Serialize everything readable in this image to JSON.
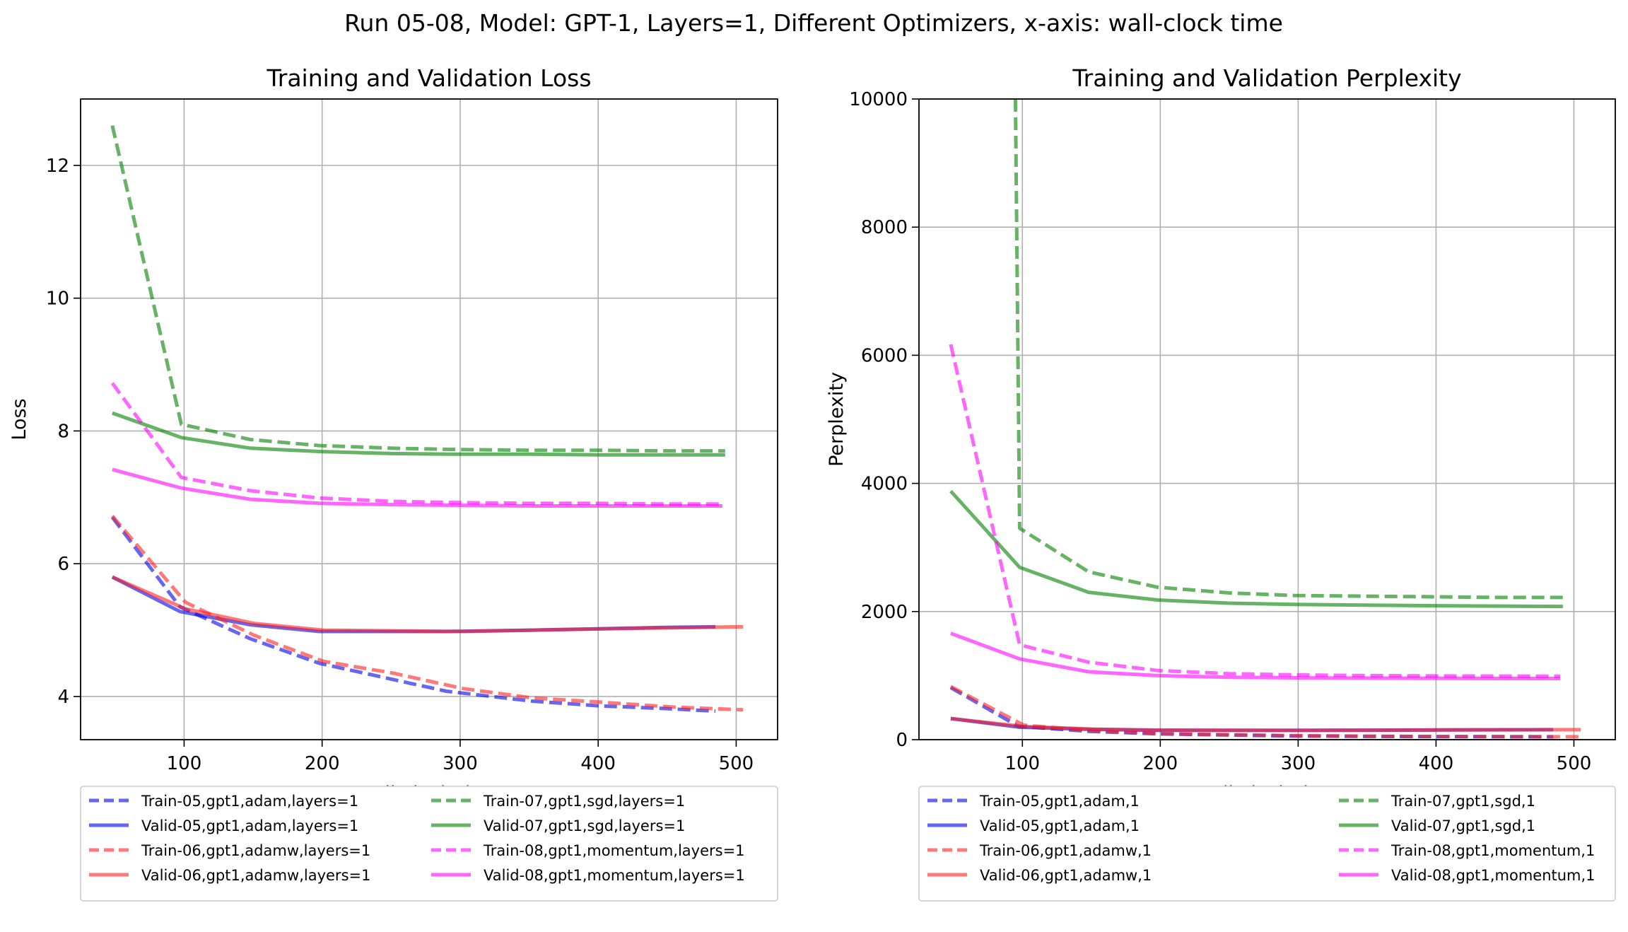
{
  "figure_title": "Run 05-08, Model: GPT-1, Layers=1, Different Optimizers, x-axis: wall-clock time",
  "chart_data": [
    {
      "type": "line",
      "title": "Training and Validation Loss",
      "xlabel": "wall-clock time",
      "ylabel": "Loss",
      "xlim": [
        25,
        530
      ],
      "ylim": [
        3.35,
        13.0
      ],
      "xticks": [
        100,
        200,
        300,
        400,
        500
      ],
      "yticks": [
        4,
        6,
        8,
        10,
        12
      ],
      "grid": true,
      "legend_position": "below",
      "series": [
        {
          "name": "Train-05,gpt1,adam,layers=1",
          "color": "#0000e6",
          "style": "dashed",
          "x": [
            48,
            97,
            148,
            198,
            290,
            352,
            400,
            447,
            485
          ],
          "y": [
            6.7,
            5.35,
            4.87,
            4.5,
            4.08,
            3.93,
            3.86,
            3.82,
            3.78
          ]
        },
        {
          "name": "Valid-05,gpt1,adam,layers=1",
          "color": "#0000e6",
          "style": "solid",
          "x": [
            48,
            97,
            148,
            198,
            290,
            352,
            400,
            447,
            485
          ],
          "y": [
            5.8,
            5.28,
            5.08,
            4.98,
            4.98,
            5.0,
            5.02,
            5.04,
            5.05
          ]
        },
        {
          "name": "Train-06,gpt1,adamw,layers=1",
          "color": "#ff2020",
          "style": "dashed",
          "x": [
            48,
            101,
            151,
            201,
            252,
            302,
            352,
            405,
            455,
            505
          ],
          "y": [
            6.72,
            5.42,
            4.92,
            4.53,
            4.35,
            4.12,
            3.98,
            3.91,
            3.84,
            3.8
          ]
        },
        {
          "name": "Valid-06,gpt1,adamw,layers=1",
          "color": "#ff2020",
          "style": "solid",
          "x": [
            48,
            101,
            151,
            201,
            302,
            405,
            505
          ],
          "y": [
            5.8,
            5.32,
            5.1,
            5.0,
            4.98,
            5.02,
            5.05
          ]
        },
        {
          "name": "Train-07,gpt1,sgd,layers=1",
          "color": "#008000",
          "style": "dashed",
          "x": [
            48,
            98,
            148,
            198,
            250,
            297,
            350,
            400,
            445,
            492
          ],
          "y": [
            12.6,
            8.1,
            7.87,
            7.78,
            7.74,
            7.72,
            7.71,
            7.71,
            7.7,
            7.7
          ]
        },
        {
          "name": "Valid-07,gpt1,sgd,layers=1",
          "color": "#008000",
          "style": "solid",
          "x": [
            48,
            98,
            148,
            198,
            250,
            297,
            350,
            400,
            445,
            492
          ],
          "y": [
            8.27,
            7.9,
            7.74,
            7.69,
            7.66,
            7.65,
            7.65,
            7.64,
            7.64,
            7.64
          ]
        },
        {
          "name": "Train-08,gpt1,momentum,layers=1",
          "color": "#ff00ff",
          "style": "dashed",
          "x": [
            48,
            98,
            148,
            198,
            250,
            300,
            350,
            400,
            445,
            490
          ],
          "y": [
            8.72,
            7.3,
            7.1,
            6.99,
            6.94,
            6.92,
            6.91,
            6.91,
            6.9,
            6.9
          ]
        },
        {
          "name": "Valid-08,gpt1,momentum,layers=1",
          "color": "#ff00ff",
          "style": "solid",
          "x": [
            48,
            98,
            148,
            198,
            250,
            300,
            350,
            400,
            445,
            490
          ],
          "y": [
            7.42,
            7.14,
            6.97,
            6.91,
            6.89,
            6.88,
            6.87,
            6.87,
            6.87,
            6.87
          ]
        }
      ]
    },
    {
      "type": "line",
      "title": "Training and Validation Perplexity",
      "xlabel": "wall-clock time",
      "ylabel": "Perplexity",
      "xlim": [
        25,
        530
      ],
      "ylim": [
        0,
        10000
      ],
      "xticks": [
        100,
        200,
        300,
        400,
        500
      ],
      "yticks": [
        0,
        2000,
        4000,
        6000,
        8000,
        10000
      ],
      "grid": true,
      "legend_position": "below",
      "series": [
        {
          "name": "Train-05,gpt1,adam,1",
          "color": "#0000e6",
          "style": "dashed",
          "x": [
            48,
            97,
            148,
            198,
            290,
            352,
            400,
            447,
            485
          ],
          "y": [
            812,
            210,
            130,
            90,
            59,
            51,
            47,
            46,
            44
          ]
        },
        {
          "name": "Valid-05,gpt1,adam,1",
          "color": "#0000e6",
          "style": "solid",
          "x": [
            48,
            97,
            148,
            198,
            290,
            352,
            400,
            447,
            485
          ],
          "y": [
            330,
            197,
            161,
            146,
            145,
            148,
            151,
            154,
            156
          ]
        },
        {
          "name": "Train-06,gpt1,adamw,1",
          "color": "#ff2020",
          "style": "dashed",
          "x": [
            48,
            101,
            151,
            201,
            252,
            302,
            352,
            405,
            455,
            505
          ],
          "y": [
            830,
            226,
            138,
            93,
            77,
            62,
            54,
            50,
            47,
            45
          ]
        },
        {
          "name": "Valid-06,gpt1,adamw,1",
          "color": "#ff2020",
          "style": "solid",
          "x": [
            48,
            101,
            151,
            201,
            302,
            405,
            505
          ],
          "y": [
            330,
            205,
            164,
            148,
            145,
            151,
            156
          ]
        },
        {
          "name": "Train-07,gpt1,sgd,1",
          "color": "#008000",
          "style": "dashed",
          "x": [
            95,
            95,
            98,
            148,
            198,
            250,
            297,
            350,
            400,
            445,
            492
          ],
          "y": [
            10000,
            9950,
            3300,
            2620,
            2380,
            2290,
            2250,
            2240,
            2230,
            2220,
            2220
          ]
        },
        {
          "name": "Valid-07,gpt1,sgd,1",
          "color": "#008000",
          "style": "solid",
          "x": [
            48,
            98,
            148,
            198,
            250,
            297,
            350,
            400,
            445,
            492
          ],
          "y": [
            3880,
            2690,
            2300,
            2180,
            2130,
            2110,
            2100,
            2090,
            2085,
            2080
          ]
        },
        {
          "name": "Train-08,gpt1,momentum,1",
          "color": "#ff00ff",
          "style": "dashed",
          "x": [
            48,
            98,
            148,
            198,
            250,
            300,
            350,
            400,
            445,
            490
          ],
          "y": [
            6170,
            1480,
            1210,
            1080,
            1030,
            1010,
            1000,
            995,
            992,
            990
          ]
        },
        {
          "name": "Valid-08,gpt1,momentum,1",
          "color": "#ff00ff",
          "style": "solid",
          "x": [
            48,
            98,
            148,
            198,
            250,
            300,
            350,
            400,
            445,
            490
          ],
          "y": [
            1660,
            1260,
            1060,
            1000,
            975,
            965,
            960,
            958,
            955,
            955
          ]
        }
      ]
    }
  ]
}
